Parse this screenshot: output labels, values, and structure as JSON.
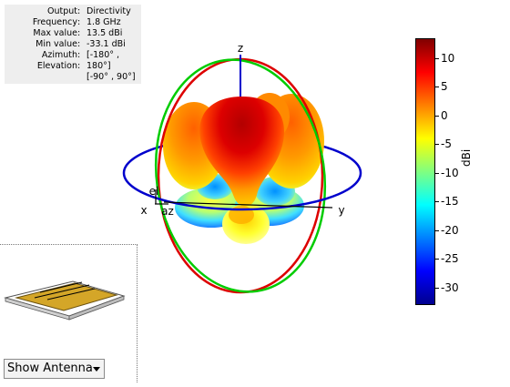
{
  "info": {
    "rows": [
      {
        "key": "Output",
        "value": "Directivity"
      },
      {
        "key": "Frequency",
        "value": "1.8 GHz"
      },
      {
        "key": "Max value",
        "value": "13.5 dBi"
      },
      {
        "key": "Min value",
        "value": "-33.1 dBi"
      },
      {
        "key": "Azimuth",
        "value": "[-180° ,"
      },
      {
        "key": "Elevation",
        "value": "180°]"
      },
      {
        "key": "",
        "value": "[-90° , 90°]"
      }
    ]
  },
  "axes": {
    "z": "z",
    "x": "x",
    "y": "y",
    "el": "el",
    "az": "az"
  },
  "colorbar": {
    "label": "dBi",
    "min": -33.1,
    "max": 13.5,
    "ticks": [
      "10",
      "5",
      "0",
      "-5",
      "-10",
      "-15",
      "-20",
      "-25",
      "-30"
    ],
    "tick_values": [
      10,
      5,
      0,
      -5,
      -10,
      -15,
      -20,
      -25,
      -30
    ],
    "colors": [
      "#800000",
      "#ff0000",
      "#ff8000",
      "#ffff00",
      "#80ff80",
      "#00ffff",
      "#0080ff",
      "#0000ff",
      "#00008f"
    ]
  },
  "view_selector": {
    "selected": "Show Antenna"
  },
  "colors": {
    "azimuth_ring": "#0000cc",
    "elevation_ring_red": "#dd0000",
    "elevation_ring_green": "#00cc00",
    "antenna_patch": "#d4a628"
  }
}
